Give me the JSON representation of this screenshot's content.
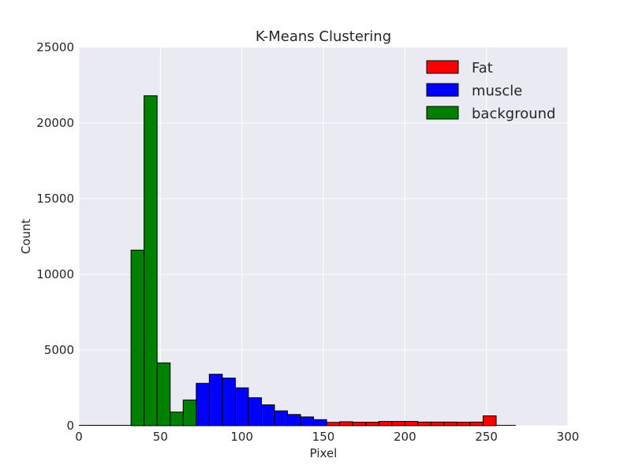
{
  "chart_data": {
    "type": "bar",
    "title": "K-Means Clustering",
    "xlabel": "Pixel",
    "ylabel": "Count",
    "xlim": [
      0,
      300
    ],
    "ylim": [
      0,
      25000
    ],
    "xticks": [
      "0",
      "50",
      "100",
      "150",
      "200",
      "250",
      "300"
    ],
    "yticks": [
      "0",
      "5000",
      "10000",
      "15000",
      "20000",
      "25000"
    ],
    "grid": true,
    "legend_position": "top-right",
    "series": [
      {
        "name": "Fat",
        "color": "#ff0000",
        "bins": [
          {
            "x0": 152,
            "x1": 160,
            "value": 220
          },
          {
            "x0": 160,
            "x1": 168,
            "value": 260
          },
          {
            "x0": 168,
            "x1": 176,
            "value": 230
          },
          {
            "x0": 176,
            "x1": 184,
            "value": 230
          },
          {
            "x0": 184,
            "x1": 192,
            "value": 280
          },
          {
            "x0": 192,
            "x1": 200,
            "value": 280
          },
          {
            "x0": 200,
            "x1": 208,
            "value": 280
          },
          {
            "x0": 208,
            "x1": 216,
            "value": 240
          },
          {
            "x0": 216,
            "x1": 224,
            "value": 240
          },
          {
            "x0": 224,
            "x1": 232,
            "value": 240
          },
          {
            "x0": 232,
            "x1": 240,
            "value": 230
          },
          {
            "x0": 240,
            "x1": 248,
            "value": 240
          },
          {
            "x0": 248,
            "x1": 256,
            "value": 650
          }
        ]
      },
      {
        "name": "muscle",
        "color": "#0000ff",
        "bins": [
          {
            "x0": 72,
            "x1": 80,
            "value": 2800
          },
          {
            "x0": 80,
            "x1": 88,
            "value": 3400
          },
          {
            "x0": 88,
            "x1": 96,
            "value": 3150
          },
          {
            "x0": 96,
            "x1": 104,
            "value": 2500
          },
          {
            "x0": 104,
            "x1": 112,
            "value": 1850
          },
          {
            "x0": 112,
            "x1": 120,
            "value": 1380
          },
          {
            "x0": 120,
            "x1": 128,
            "value": 980
          },
          {
            "x0": 128,
            "x1": 136,
            "value": 740
          },
          {
            "x0": 136,
            "x1": 144,
            "value": 580
          },
          {
            "x0": 144,
            "x1": 152,
            "value": 400
          }
        ]
      },
      {
        "name": "background",
        "color": "#008000",
        "bins": [
          {
            "x0": 32,
            "x1": 40,
            "value": 11600
          },
          {
            "x0": 40,
            "x1": 48,
            "value": 21800
          },
          {
            "x0": 48,
            "x1": 56,
            "value": 4150
          },
          {
            "x0": 56,
            "x1": 64,
            "value": 900
          },
          {
            "x0": 64,
            "x1": 72,
            "value": 1700
          }
        ]
      }
    ]
  }
}
